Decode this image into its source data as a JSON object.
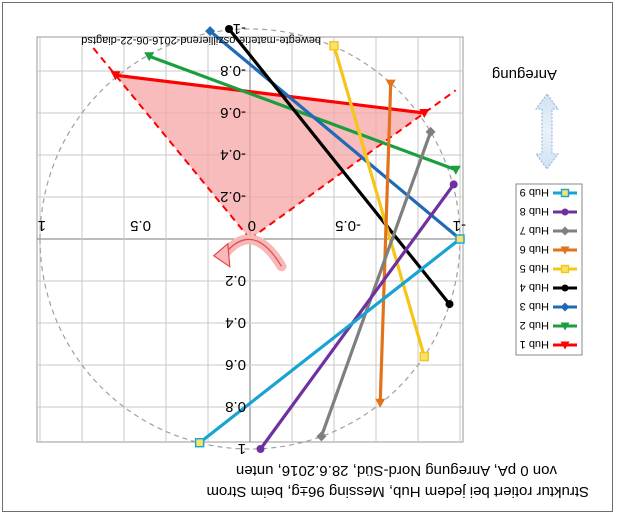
{
  "caption": {
    "line1": "Struktur rotiert bei jedem Hub, Messing 96±g, beim Strom",
    "line2": "von  0 pA, Anregung Nord-Süd,   28.6.2016, unten"
  },
  "file_label": "bewegte-materie-oszillierend-2016-06-22-diagtsd",
  "excitation_label": "Anregung",
  "chart_data": {
    "type": "line",
    "display": "rotated 180 degrees (upside down); values given in the chart's own data units",
    "xlim": [
      -1,
      1
    ],
    "ylim": [
      -1,
      1
    ],
    "x_ticks": [
      "-1",
      "-0.5",
      "0",
      "0.5",
      "1"
    ],
    "y_ticks": [
      "-1",
      "-0.8",
      "-0.6",
      "-0.4",
      "-0.2",
      "0",
      "0.2",
      "0.4",
      "0.6",
      "0.8",
      "1"
    ],
    "grid": true,
    "unit_circle": true,
    "legend_position": "left",
    "series": [
      {
        "name": "Hub 1",
        "color": "#ff0000",
        "marker": "triangle",
        "points": [
          [
            -0.83,
            -0.6
          ],
          [
            0.64,
            -0.78
          ]
        ]
      },
      {
        "name": "Hub 2",
        "color": "#1a9e3e",
        "marker": "triangle",
        "points": [
          [
            -0.98,
            -0.33
          ],
          [
            0.48,
            -0.87
          ]
        ]
      },
      {
        "name": "Hub 3",
        "color": "#1f6bb5",
        "marker": "diamond",
        "points": [
          [
            -1.0,
            0.0
          ],
          [
            0.19,
            -0.99
          ]
        ]
      },
      {
        "name": "Hub 4",
        "color": "#000000",
        "marker": "circle",
        "points": [
          [
            -0.95,
            0.31
          ],
          [
            0.1,
            -1.0
          ]
        ]
      },
      {
        "name": "Hub 5",
        "color": "#f5c518",
        "marker": "square",
        "points": [
          [
            -0.83,
            0.56
          ],
          [
            -0.4,
            -0.92
          ]
        ]
      },
      {
        "name": "Hub 6",
        "color": "#e2731a",
        "marker": "triangle",
        "points": [
          [
            -0.62,
            0.78
          ],
          [
            -0.67,
            -0.74
          ]
        ]
      },
      {
        "name": "Hub 7",
        "color": "#7f7f7f",
        "marker": "diamond",
        "points": [
          [
            -0.86,
            -0.51
          ],
          [
            -0.34,
            0.94
          ]
        ]
      },
      {
        "name": "Hub 8",
        "color": "#7030a0",
        "marker": "circle",
        "points": [
          [
            -0.97,
            -0.26
          ],
          [
            -0.05,
            1.0
          ]
        ]
      },
      {
        "name": "Hub 9",
        "color": "#17a3d3",
        "marker": "square",
        "points": [
          [
            -1.0,
            0.0
          ],
          [
            0.24,
            0.97
          ]
        ]
      }
    ],
    "reference_triangle": {
      "color": "#ff0000",
      "fill": "#f6a5a5",
      "points": [
        [
          0.0,
          0.0
        ],
        [
          0.64,
          -0.78
        ],
        [
          -0.83,
          -0.6
        ]
      ]
    },
    "rotation_arrow": {
      "color": "#e64545",
      "from": [
        -0.15,
        0.13
      ],
      "to": [
        0.12,
        0.07
      ]
    }
  }
}
